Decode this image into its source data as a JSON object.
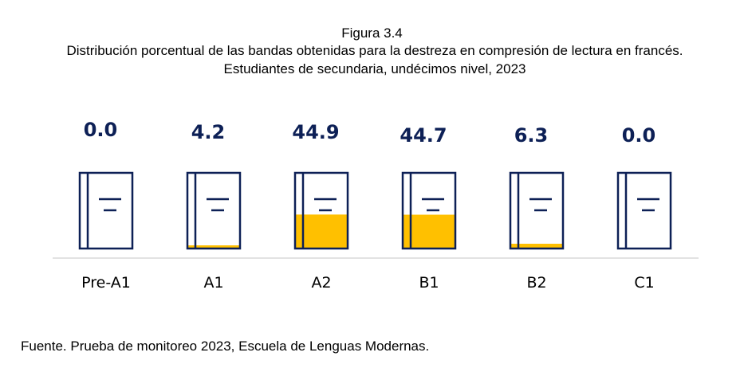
{
  "figure": {
    "label": "Figura 3.4",
    "title": "Distribución porcentual de las bandas obtenidas para la destreza en compresión de lectura en francés. Estudiantes de secundaria, undécimos nivel, 2023",
    "source": "Fuente. Prueba de monitoreo 2023, Escuela de Lenguas Modernas."
  },
  "colors": {
    "outline": "#0d2056",
    "value_text": "#0d2056",
    "fill": "#ffc000",
    "baseline": "#d9d9d9",
    "category_text": "#000000"
  },
  "chart_data": {
    "type": "bar",
    "title": "Distribución porcentual de las bandas obtenidas para la destreza en compresión de lectura en francés. Estudiantes de secundaria, undécimos nivel, 2023",
    "categories": [
      "Pre-A1",
      "A1",
      "A2",
      "B1",
      "B2",
      "C1"
    ],
    "values": [
      0.0,
      4.2,
      44.9,
      44.7,
      6.3,
      0.0
    ],
    "value_labels": [
      "0.0",
      "4.2",
      "44.9",
      "44.7",
      "6.3",
      "0.0"
    ],
    "ylim": [
      0,
      100
    ],
    "mark": "book-icon",
    "xlabel": "",
    "ylabel": "",
    "grid": false,
    "legend": "none"
  }
}
